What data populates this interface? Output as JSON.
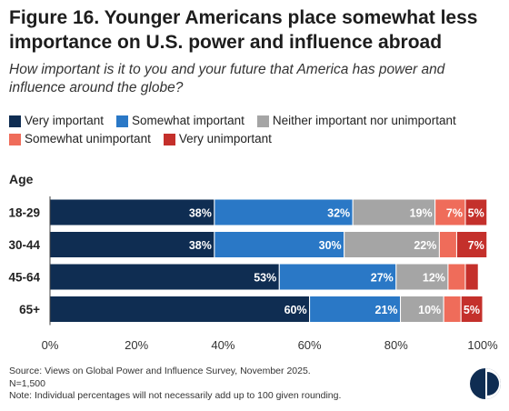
{
  "title": "Figure 16. Younger Americans place somewhat less importance on U.S. power and influence abroad",
  "subtitle": "How important is it to you and your future that America has power and influence around the globe?",
  "colors": {
    "very_important": "#0f2d52",
    "somewhat_important": "#2a78c6",
    "neither": "#a5a5a5",
    "somewhat_unimportant": "#ef6c5a",
    "very_unimportant": "#c4302b"
  },
  "chart_data": {
    "type": "bar",
    "orientation": "horizontal",
    "stacked": true,
    "ylabel": "Age",
    "categories": [
      "18-29",
      "30-44",
      "45-64",
      "65+"
    ],
    "series": [
      {
        "name": "Very important",
        "values": [
          38,
          38,
          53,
          60
        ]
      },
      {
        "name": "Somewhat important",
        "values": [
          32,
          30,
          27,
          21
        ]
      },
      {
        "name": "Neither important nor unimportant",
        "values": [
          19,
          22,
          12,
          10
        ]
      },
      {
        "name": "Somewhat unimportant",
        "values": [
          7,
          4,
          4,
          4
        ]
      },
      {
        "name": "Very unimportant",
        "values": [
          5,
          7,
          3,
          5
        ]
      }
    ],
    "data_labels": [
      [
        "38%",
        "32%",
        "19%",
        "7%",
        "5%"
      ],
      [
        "38%",
        "30%",
        "22%",
        "",
        "7%"
      ],
      [
        "53%",
        "27%",
        "12%",
        "",
        ""
      ],
      [
        "60%",
        "21%",
        "10%",
        "",
        "5%"
      ]
    ],
    "xlim": [
      0,
      100
    ],
    "xticks": [
      "0%",
      "20%",
      "40%",
      "60%",
      "80%",
      "100%"
    ],
    "legend_placement": "top",
    "grid": false
  },
  "footer": {
    "source": "Source: Views on Global Power and Influence Survey, November 2025.",
    "n": "N=1,500",
    "note": "Note: Individual percentages will not necessarily add up to 100 given rounding."
  }
}
